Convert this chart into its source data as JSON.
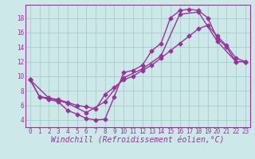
{
  "xlabel": "Windchill (Refroidissement éolien,°C)",
  "background_color": "#cce8e8",
  "line_color": "#993399",
  "grid_color": "#aacccc",
  "xlim": [
    -0.5,
    23.5
  ],
  "ylim": [
    3.0,
    19.8
  ],
  "xticks": [
    0,
    1,
    2,
    3,
    4,
    5,
    6,
    7,
    8,
    9,
    10,
    11,
    12,
    13,
    14,
    15,
    16,
    17,
    18,
    19,
    20,
    21,
    22,
    23
  ],
  "yticks": [
    4,
    6,
    8,
    10,
    12,
    14,
    16,
    18
  ],
  "series1_x": [
    0,
    1,
    2,
    3,
    4,
    5,
    6,
    7,
    8,
    9,
    10,
    11,
    12,
    13,
    14,
    15,
    16,
    17,
    18,
    19,
    20,
    21,
    22,
    23
  ],
  "series1_y": [
    9.5,
    7.2,
    6.8,
    6.5,
    5.3,
    4.8,
    4.2,
    4.0,
    4.1,
    7.2,
    10.5,
    10.8,
    11.5,
    13.5,
    14.5,
    18.0,
    19.0,
    19.2,
    19.0,
    18.0,
    15.2,
    14.0,
    12.0,
    12.0
  ],
  "series2_x": [
    0,
    1,
    2,
    3,
    4,
    5,
    6,
    7,
    8,
    9,
    10,
    11,
    12,
    13,
    14,
    15,
    16,
    17,
    18,
    19,
    20,
    21,
    22,
    23
  ],
  "series2_y": [
    9.5,
    7.2,
    7.0,
    6.8,
    6.4,
    6.0,
    5.8,
    5.5,
    7.5,
    8.5,
    9.5,
    10.0,
    10.8,
    11.5,
    12.5,
    13.5,
    14.5,
    15.5,
    16.5,
    17.0,
    15.5,
    14.2,
    12.5,
    12.0
  ],
  "series3_x": [
    0,
    2,
    4,
    6,
    8,
    10,
    12,
    14,
    16,
    18,
    20,
    22,
    23
  ],
  "series3_y": [
    9.5,
    7.0,
    6.3,
    5.0,
    6.5,
    9.8,
    11.0,
    12.8,
    18.5,
    18.8,
    14.8,
    12.0,
    12.0
  ],
  "marker": "D",
  "markersize": 2.5,
  "linewidth": 1.0,
  "tick_fontsize": 5.5,
  "label_fontsize": 7.0
}
